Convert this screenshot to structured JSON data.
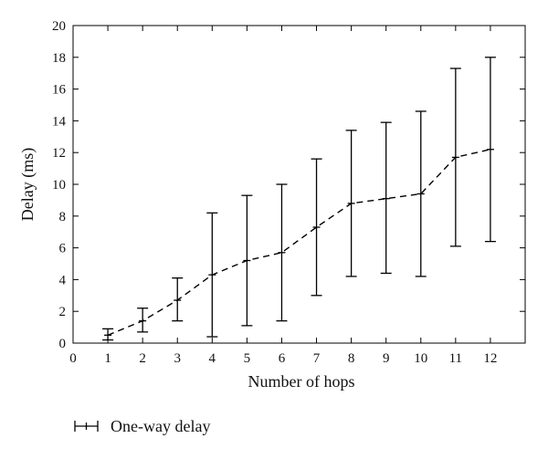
{
  "chart_data": {
    "type": "line",
    "title": "",
    "xlabel": "Number of hops",
    "ylabel": "Delay (ms)",
    "xlim": [
      0,
      13
    ],
    "ylim": [
      0,
      20
    ],
    "xticks": [
      "0",
      "1",
      "2",
      "3",
      "4",
      "5",
      "6",
      "7",
      "8",
      "9",
      "10",
      "11",
      "12"
    ],
    "yticks": [
      "0",
      "2",
      "4",
      "6",
      "8",
      "10",
      "12",
      "14",
      "16",
      "18",
      "20"
    ],
    "grid": false,
    "legend_position": "bottom-left",
    "line_style": "dashed",
    "error_bars": true,
    "series": [
      {
        "name": "One-way delay",
        "x": [
          1,
          2,
          3,
          4,
          5,
          6,
          7,
          8,
          9,
          10,
          11,
          12
        ],
        "y": [
          0.5,
          1.4,
          2.7,
          4.3,
          5.2,
          5.7,
          7.3,
          8.8,
          9.1,
          9.4,
          11.7,
          12.2
        ],
        "err_low": [
          0.2,
          0.7,
          1.4,
          0.4,
          1.1,
          1.4,
          3.0,
          4.2,
          4.4,
          4.2,
          6.1,
          6.4
        ],
        "err_high": [
          0.9,
          2.2,
          4.1,
          8.2,
          9.3,
          10.0,
          11.6,
          13.4,
          13.9,
          14.6,
          17.3,
          18.0
        ]
      }
    ]
  },
  "legend": {
    "label": "One-way delay"
  }
}
